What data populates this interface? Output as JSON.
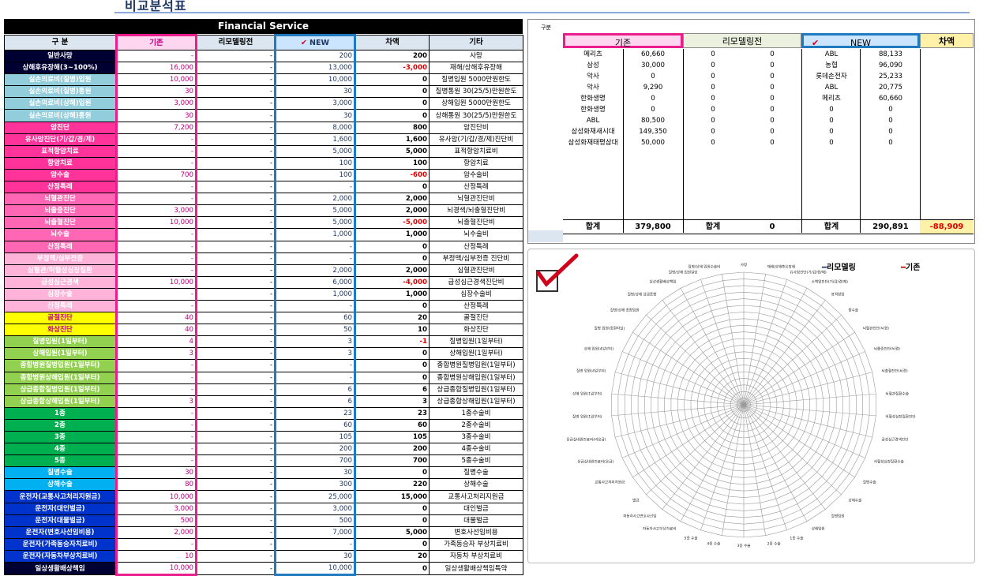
{
  "page_title": "비교분석표",
  "left_table": {
    "title": "Financial Service",
    "headers": [
      "구 분",
      "기존",
      "리모델링전",
      "NEW",
      "차액",
      "기타"
    ],
    "check_mark": "✔",
    "rows": [
      {
        "label": "일반사망",
        "bg": "#000033",
        "a": "-",
        "b": "-",
        "c": "200",
        "d": "200",
        "e": "사망"
      },
      {
        "label": "상해후유장해(3~100%)",
        "bg": "#000033",
        "a": "16,000",
        "b": "-",
        "c": "13,000",
        "d": "-3,000",
        "e": "재해/상해후유장해",
        "neg": true
      },
      {
        "label": "실손의료비(질병)입원",
        "bg": "#92cddc",
        "a": "10,000",
        "b": "-",
        "c": "10,000",
        "d": "0",
        "e": "질병입원 5000만원한도"
      },
      {
        "label": "실손의료비(질병)통원",
        "bg": "#92cddc",
        "a": "30",
        "b": "-",
        "c": "30",
        "d": "0",
        "e": "질병통원 30(25/5)만원한도"
      },
      {
        "label": "실손의료비(상해)입원",
        "bg": "#92cddc",
        "a": "3,000",
        "b": "-",
        "c": "3,000",
        "d": "0",
        "e": "상해입원 5000만원한도"
      },
      {
        "label": "실손의료비(상해)통원",
        "bg": "#92cddc",
        "a": "30",
        "b": "-",
        "c": "30",
        "d": "0",
        "e": "상해통원 30(25/5)만원한도"
      },
      {
        "label": "암진단",
        "bg": "#ff3399",
        "a": "7,200",
        "b": "-",
        "c": "8,000",
        "d": "800",
        "e": "암진단비"
      },
      {
        "label": "유사암진단(기/갑/경/제)",
        "bg": "#ff3399",
        "a": "-",
        "b": "-",
        "c": "1,600",
        "d": "1,600",
        "e": "유사암(기/갑/경/제)진단비"
      },
      {
        "label": "표적항암치료",
        "bg": "#ff3399",
        "a": "-",
        "b": "-",
        "c": "5,000",
        "d": "5,000",
        "e": "표적항암치료비"
      },
      {
        "label": "항암치료",
        "bg": "#ff3399",
        "a": "-",
        "b": "-",
        "c": "100",
        "d": "100",
        "e": "항암치료"
      },
      {
        "label": "암수술",
        "bg": "#ff3399",
        "a": "700",
        "b": "-",
        "c": "100",
        "d": "-600",
        "e": "암수술비",
        "neg": true
      },
      {
        "label": "산정특례",
        "bg": "#ff3399",
        "a": "-",
        "b": "-",
        "c": "-",
        "d": "0",
        "e": "산정특례"
      },
      {
        "label": "뇌혈관진단",
        "bg": "#ff66b3",
        "a": "-",
        "b": "-",
        "c": "2,000",
        "d": "2,000",
        "e": "뇌혈관진단비"
      },
      {
        "label": "뇌졸중진단",
        "bg": "#ff66b3",
        "a": "3,000",
        "b": "-",
        "c": "5,000",
        "d": "2,000",
        "e": "뇌경색/뇌출혈진단비"
      },
      {
        "label": "뇌출혈진단",
        "bg": "#ff66b3",
        "a": "10,000",
        "b": "-",
        "c": "5,000",
        "d": "-5,000",
        "e": "뇌출혈진단비",
        "neg": true
      },
      {
        "label": "뇌수술",
        "bg": "#ff66b3",
        "a": "-",
        "b": "-",
        "c": "1,000",
        "d": "1,000",
        "e": "뇌수술비"
      },
      {
        "label": "산정특례",
        "bg": "#ff66b3",
        "a": "-",
        "b": "-",
        "c": "-",
        "d": "0",
        "e": "산정특례"
      },
      {
        "label": "부정맥/심부전증",
        "bg": "#ffb3d9",
        "a": "-",
        "b": "-",
        "c": "-",
        "d": "0",
        "e": "부정맥/심부전증 진단비"
      },
      {
        "label": "심혈관/허혈성심장질환",
        "bg": "#ffb3d9",
        "a": "-",
        "b": "-",
        "c": "2,000",
        "d": "2,000",
        "e": "심혈관진단비"
      },
      {
        "label": "급성심근경색",
        "bg": "#ffb3d9",
        "a": "10,000",
        "b": "-",
        "c": "6,000",
        "d": "-4,000",
        "e": "급성심근경색진단비",
        "neg": true
      },
      {
        "label": "심장수술",
        "bg": "#ffb3d9",
        "a": "-",
        "b": "-",
        "c": "1,000",
        "d": "1,000",
        "e": "심장수술비"
      },
      {
        "label": "산정특례",
        "bg": "#ffb3d9",
        "a": "-",
        "b": "-",
        "c": "-",
        "d": "0",
        "e": "산정특례"
      },
      {
        "label": "골절진단",
        "bg": "#ffff00",
        "a": "40",
        "b": "-",
        "c": "60",
        "d": "20",
        "e": "골절진단",
        "dark": true
      },
      {
        "label": "화상진단",
        "bg": "#ffff00",
        "a": "40",
        "b": "-",
        "c": "50",
        "d": "10",
        "e": "화상진단",
        "dark": true
      },
      {
        "label": "질병입원(1일부터)",
        "bg": "#92d050",
        "a": "4",
        "b": "-",
        "c": "3",
        "d": "-1",
        "e": "질병입원(1일부터)",
        "neg": true
      },
      {
        "label": "상해입원(1일부터)",
        "bg": "#92d050",
        "a": "3",
        "b": "-",
        "c": "3",
        "d": "0",
        "e": "상해입원(1일부터)"
      },
      {
        "label": "종합병원질병입원(1일부터)",
        "bg": "#92d050",
        "a": "-",
        "b": "-",
        "c": "-",
        "d": "0",
        "e": "종합병원질병입원(1일부터)"
      },
      {
        "label": "종합병원상해입원(1일부터)",
        "bg": "#92d050",
        "a": "-",
        "b": "-",
        "c": "-",
        "d": "0",
        "e": "종합병원상해입원(1일부터)"
      },
      {
        "label": "상급종합질병입원(1일부터)",
        "bg": "#92d050",
        "a": "-",
        "b": "-",
        "c": "6",
        "d": "6",
        "e": "상급종합질병입원(1일부터)"
      },
      {
        "label": "상급종합상해입원(1일부터)",
        "bg": "#92d050",
        "a": "3",
        "b": "-",
        "c": "6",
        "d": "3",
        "e": "상급종합상해입원(1일부터)"
      },
      {
        "label": "1종",
        "bg": "#00b050",
        "a": "-",
        "b": "-",
        "c": "23",
        "d": "23",
        "e": "1종수술비"
      },
      {
        "label": "2종",
        "bg": "#00b050",
        "a": "-",
        "b": "-",
        "c": "60",
        "d": "60",
        "e": "2종수술비"
      },
      {
        "label": "3종",
        "bg": "#00b050",
        "a": "-",
        "b": "-",
        "c": "105",
        "d": "105",
        "e": "3종수술비"
      },
      {
        "label": "4종",
        "bg": "#00b050",
        "a": "-",
        "b": "-",
        "c": "200",
        "d": "200",
        "e": "4종수술비"
      },
      {
        "label": "5종",
        "bg": "#00b050",
        "a": "-",
        "b": "-",
        "c": "700",
        "d": "700",
        "e": "5종수술비"
      },
      {
        "label": "질병수술",
        "bg": "#00b0f0",
        "a": "30",
        "b": "-",
        "c": "30",
        "d": "0",
        "e": "질병수술"
      },
      {
        "label": "상해수술",
        "bg": "#00b0f0",
        "a": "80",
        "b": "-",
        "c": "300",
        "d": "220",
        "e": "상해수술"
      },
      {
        "label": "운전자(교통사고처리지원금)",
        "bg": "#0033cc",
        "a": "10,000",
        "b": "-",
        "c": "25,000",
        "d": "15,000",
        "e": "교통사고처리지원금"
      },
      {
        "label": "운전자(대인벌금)",
        "bg": "#0033cc",
        "a": "3,000",
        "b": "-",
        "c": "3,000",
        "d": "0",
        "e": "대인벌금"
      },
      {
        "label": "운전자(대물벌금)",
        "bg": "#0033cc",
        "a": "500",
        "b": "-",
        "c": "500",
        "d": "0",
        "e": "대물벌금"
      },
      {
        "label": "운전자(변호사선임비용)",
        "bg": "#0033cc",
        "a": "2,000",
        "b": "-",
        "c": "7,000",
        "d": "5,000",
        "e": "변호사선임비용"
      },
      {
        "label": "운전자(가족동승자치료비)",
        "bg": "#0033cc",
        "a": "-",
        "b": "-",
        "c": "-",
        "d": "0",
        "e": "가족동승자 부상치료비"
      },
      {
        "label": "운전자(자동차부상치료비)",
        "bg": "#0033cc",
        "a": "10",
        "b": "-",
        "c": "30",
        "d": "20",
        "e": "자동차 부상치료비"
      },
      {
        "label": "일상생활배상책임",
        "bg": "#000033",
        "a": "10,000",
        "b": "-",
        "c": "10,000",
        "d": "0",
        "e": "일상생활배상책임특약"
      }
    ]
  },
  "summary": {
    "label": "구분",
    "headers": [
      "기존",
      "리모델링전",
      "NEW",
      "차액"
    ],
    "header_colors": [
      "#ffd6ef",
      "#ebf1de",
      "#cce5ff",
      "#fff2a8"
    ],
    "rows": [
      {
        "a1": "메리츠",
        "a2": "60,660",
        "b1": "0",
        "b2": "0",
        "c1": "ABL",
        "c2": "88,133"
      },
      {
        "a1": "삼성",
        "a2": "30,000",
        "b1": "0",
        "b2": "0",
        "c1": "농협",
        "c2": "96,090"
      },
      {
        "a1": "악사",
        "a2": "0",
        "b1": "0",
        "b2": "0",
        "c1": "롯데손전자",
        "c2": "25,233"
      },
      {
        "a1": "악사",
        "a2": "9,290",
        "b1": "0",
        "b2": "0",
        "c1": "ABL",
        "c2": "20,775"
      },
      {
        "a1": "한화생명",
        "a2": "0",
        "b1": "0",
        "b2": "0",
        "c1": "메리츠",
        "c2": "60,660"
      },
      {
        "a1": "한화생명",
        "a2": "0",
        "b1": "0",
        "b2": "0",
        "c1": "0",
        "c2": "0"
      },
      {
        "a1": "ABL",
        "a2": "80,500",
        "b1": "0",
        "b2": "0",
        "c1": "0",
        "c2": "0"
      },
      {
        "a1": "삼성화재새시대",
        "a2": "149,350",
        "b1": "0",
        "b2": "0",
        "c1": "0",
        "c2": "0"
      },
      {
        "a1": "삼성화재태평삼대",
        "a2": "50,000",
        "b1": "0",
        "b2": "0",
        "c1": "0",
        "c2": "0"
      }
    ],
    "total_label": "합계",
    "totals": {
      "a": "379,800",
      "b": "0",
      "c": "290,891",
      "diff": "-88,909"
    }
  },
  "radar": {
    "legend": [
      {
        "name": "리모델링",
        "color": "#1f3864"
      },
      {
        "name": "기존",
        "color": "#c00000"
      }
    ],
    "axes": [
      "사망",
      "재해/상해후유장해",
      "유사암진단(기/갑/경/제)",
      "소액암진단(기/갑/경/제)",
      "표적항암",
      "항수술",
      "뇌혈관진단(뇌경)",
      "뇌졸중진단(뇌경)",
      "뇌출혈진단(뇌경)",
      "뇌혈관질환수술",
      "허혈성심장질환진단",
      "급성심근경색진단",
      "허혈성심장질환수술",
      "질병수술",
      "상해수술",
      "질병입원",
      "상해입원",
      "1종 수술",
      "2종 수술",
      "3종 수술",
      "4종 수술",
      "5종 수술",
      "자동차사고부상치료비",
      "자동차사고변호사선임",
      "벌금",
      "교통사고처리지원금",
      "응급실내원진료비(응급)",
      "응급실내원진료비(비응급)",
      "질병 입원(1일부터)",
      "상해 입원(1일부터)",
      "질병 입원(4일부터)",
      "상해 입원(4일부터)",
      "질병 입원(중환자실)",
      "질병/상해 종합입원",
      "질병/상해 상급종합",
      "일상생활배상책임",
      "질병/상해 입원일당",
      "질병/상해 입원수술비"
    ],
    "rings": 20
  }
}
